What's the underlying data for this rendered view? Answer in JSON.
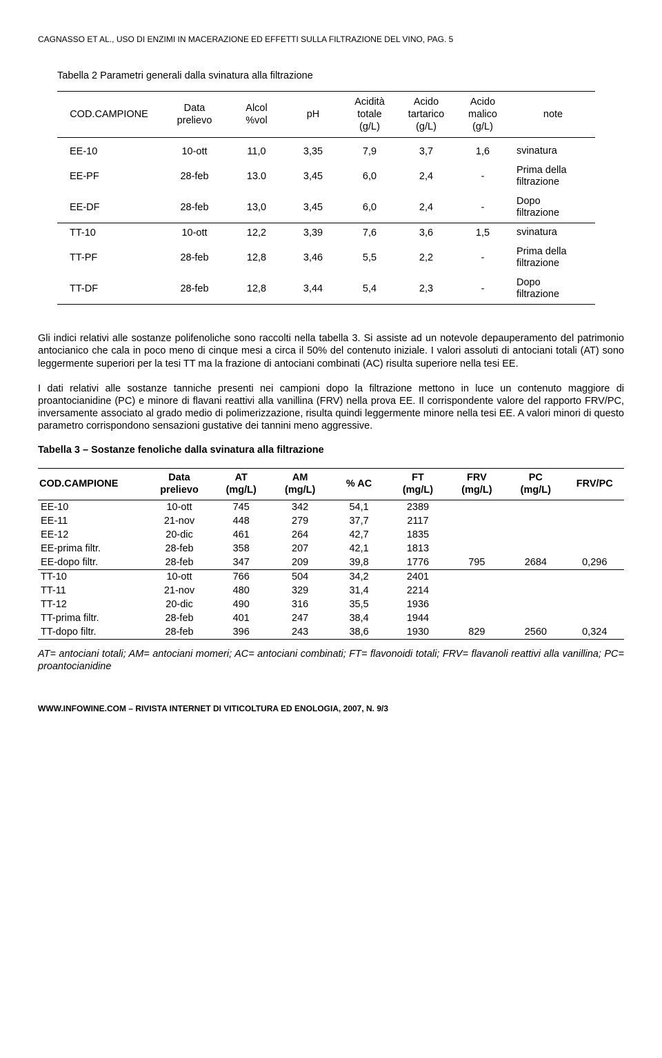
{
  "header": "CAGNASSO ET AL., USO DI ENZIMI IN MACERAZIONE ED EFFETTI SULLA FILTRAZIONE DEL VINO, PAG. 5",
  "table2": {
    "caption": "Tabella 2 Parametri generali dalla svinatura alla filtrazione",
    "headers": {
      "h1": "COD.CAMPIONE",
      "h2_a": "Data",
      "h2_b": "prelievo",
      "h3_a": "Alcol",
      "h3_b": "%vol",
      "h4": "pH",
      "h5_a": "Acidità",
      "h5_b": "totale",
      "h5_c": "(g/L)",
      "h6_a": "Acido",
      "h6_b": "tartarico",
      "h6_c": "(g/L)",
      "h7_a": "Acido",
      "h7_b": "malico",
      "h7_c": "(g/L)",
      "h8": "note"
    },
    "rows": [
      {
        "c": "EE-10",
        "d": "10-ott",
        "a": "11,0",
        "p": "3,35",
        "at": "7,9",
        "tar": "3,7",
        "mal": "1,6",
        "note": "svinatura"
      },
      {
        "c": "EE-PF",
        "d": "28-feb",
        "a": "13.0",
        "p": "3,45",
        "at": "6,0",
        "tar": "2,4",
        "mal": "-",
        "note_a": "Prima della",
        "note_b": "filtrazione"
      },
      {
        "c": "EE-DF",
        "d": "28-feb",
        "a": "13,0",
        "p": "3,45",
        "at": "6,0",
        "tar": "2,4",
        "mal": "-",
        "note_a": "Dopo",
        "note_b": "filtrazione"
      },
      {
        "c": "TT-10",
        "d": "10-ott",
        "a": "12,2",
        "p": "3,39",
        "at": "7,6",
        "tar": "3,6",
        "mal": "1,5",
        "note": "svinatura"
      },
      {
        "c": "TT-PF",
        "d": "28-feb",
        "a": "12,8",
        "p": "3,46",
        "at": "5,5",
        "tar": "2,2",
        "mal": "-",
        "note_a": "Prima della",
        "note_b": "filtrazione"
      },
      {
        "c": "TT-DF",
        "d": "28-feb",
        "a": "12,8",
        "p": "3,44",
        "at": "5,4",
        "tar": "2,3",
        "mal": "-",
        "note_a": "Dopo",
        "note_b": "filtrazione"
      }
    ]
  },
  "para1": "Gli indici relativi alle sostanze polifenoliche sono raccolti nella tabella 3. Si assiste ad un notevole depauperamento del patrimonio antocianico che cala in poco meno di cinque mesi a circa il 50% del contenuto iniziale. I valori assoluti di antociani totali (AT) sono leggermente superiori per la tesi TT ma la frazione di antociani combinati (AC) risulta superiore nella tesi EE.",
  "para2": "I dati relativi alle sostanze tanniche presenti nei campioni dopo la filtrazione mettono in luce un contenuto maggiore di proantocianidine (PC) e minore di flavani reattivi alla vanillina (FRV) nella prova EE. Il corrispondente valore del rapporto FRV/PC, inversamente associato al grado medio di polimerizzazione, risulta quindi leggermente minore nella tesi EE. A valori minori di questo parametro corrispondono sensazioni gustative dei tannini meno aggressive.",
  "table3": {
    "caption": "Tabella 3 – Sostanze fenoliche dalla svinatura alla filtrazione",
    "headers": {
      "h1": "COD.CAMPIONE",
      "h2_a": "Data",
      "h2_b": "prelievo",
      "h3_a": "AT",
      "h3_b": "(mg/L)",
      "h4_a": "AM",
      "h4_b": "(mg/L)",
      "h5": "% AC",
      "h6_a": "FT",
      "h6_b": "(mg/L)",
      "h7_a": "FRV",
      "h7_b": "(mg/L)",
      "h8_a": "PC",
      "h8_b": "(mg/L)",
      "h9": "FRV/PC"
    },
    "rows": [
      {
        "c": "EE-10",
        "d": "10-ott",
        "at": "745",
        "am": "342",
        "ac": "54,1",
        "ft": "2389",
        "frv": "",
        "pc": "",
        "r": ""
      },
      {
        "c": "EE-11",
        "d": "21-nov",
        "at": "448",
        "am": "279",
        "ac": "37,7",
        "ft": "2117",
        "frv": "",
        "pc": "",
        "r": ""
      },
      {
        "c": "EE-12",
        "d": "20-dic",
        "at": "461",
        "am": "264",
        "ac": "42,7",
        "ft": "1835",
        "frv": "",
        "pc": "",
        "r": ""
      },
      {
        "c": "EE-prima filtr.",
        "d": "28-feb",
        "at": "358",
        "am": "207",
        "ac": "42,1",
        "ft": "1813",
        "frv": "",
        "pc": "",
        "r": ""
      },
      {
        "c": "EE-dopo filtr.",
        "d": "28-feb",
        "at": "347",
        "am": "209",
        "ac": "39,8",
        "ft": "1776",
        "frv": "795",
        "pc": "2684",
        "r": "0,296"
      },
      {
        "c": "TT-10",
        "d": "10-ott",
        "at": "766",
        "am": "504",
        "ac": "34,2",
        "ft": "2401",
        "frv": "",
        "pc": "",
        "r": ""
      },
      {
        "c": "TT-11",
        "d": "21-nov",
        "at": "480",
        "am": "329",
        "ac": "31,4",
        "ft": "2214",
        "frv": "",
        "pc": "",
        "r": ""
      },
      {
        "c": "TT-12",
        "d": "20-dic",
        "at": "490",
        "am": "316",
        "ac": "35,5",
        "ft": "1936",
        "frv": "",
        "pc": "",
        "r": ""
      },
      {
        "c": "TT-prima filtr.",
        "d": "28-feb",
        "at": "401",
        "am": "247",
        "ac": "38,4",
        "ft": "1944",
        "frv": "",
        "pc": "",
        "r": ""
      },
      {
        "c": "TT-dopo filtr.",
        "d": "28-feb",
        "at": "396",
        "am": "243",
        "ac": "38,6",
        "ft": "1930",
        "frv": "829",
        "pc": "2560",
        "r": "0,324"
      }
    ]
  },
  "legend": "AT= antociani totali; AM= antociani momeri; AC= antociani combinati; FT= flavonoidi totali; FRV= flavanoli reattivi alla vanillina; PC= proantocianidine",
  "footer": "WWW.INFOWINE.COM – RIVISTA INTERNET DI VITICOLTURA ED ENOLOGIA, 2007, N. 9/3"
}
